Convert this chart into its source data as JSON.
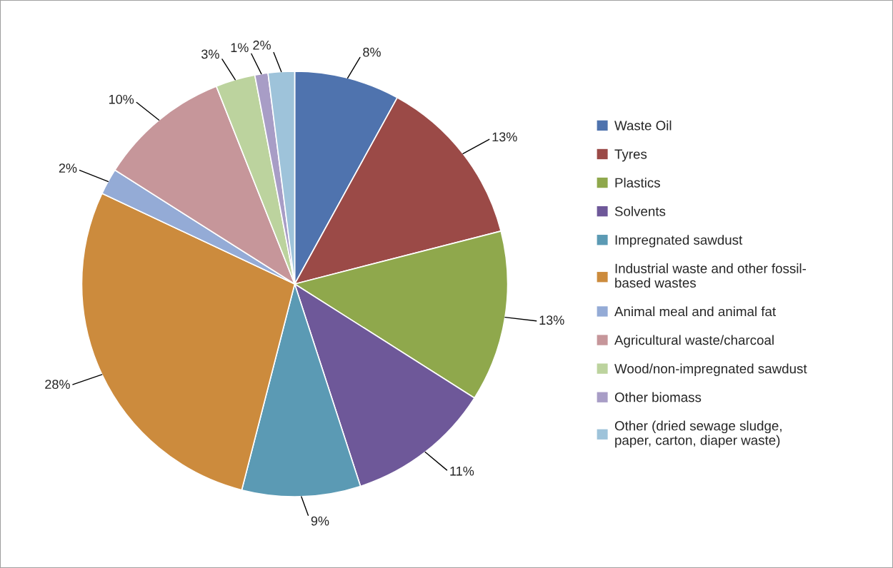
{
  "chart_data": {
    "type": "pie",
    "categories": [
      "Waste Oil",
      "Tyres",
      "Plastics",
      "Solvents",
      "Impregnated sawdust",
      "Industrial waste and other fossil-\nbased wastes",
      "Animal meal and animal fat",
      "Agricultural waste/charcoal",
      "Wood/non-impregnated sawdust",
      "Other biomass",
      "Other (dried sewage sludge,\npaper, carton, diaper waste)"
    ],
    "values": [
      8,
      13,
      13,
      11,
      9,
      28,
      2,
      10,
      3,
      1,
      2
    ],
    "value_labels": [
      "8%",
      "13%",
      "13%",
      "11%",
      "9%",
      "28%",
      "2%",
      "10%",
      "3%",
      "1%",
      "2%"
    ],
    "colors": [
      "#4f73ae",
      "#9b4a47",
      "#8fa84c",
      "#6e5899",
      "#5b9ab4",
      "#cc8b3d",
      "#94abd6",
      "#c6969a",
      "#bcd39e",
      "#a89dc6",
      "#9ec3da"
    ],
    "legend": "right"
  }
}
